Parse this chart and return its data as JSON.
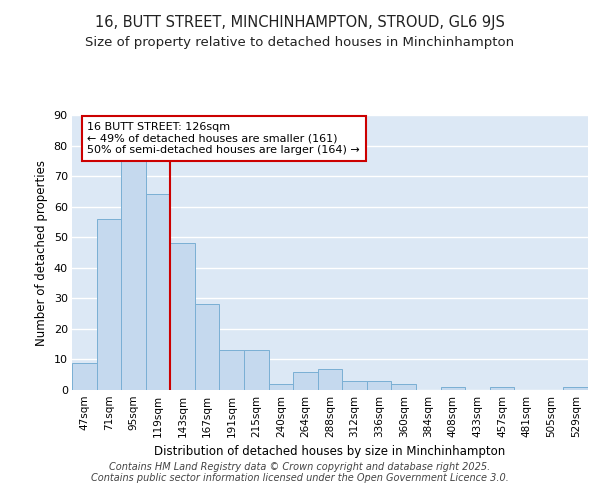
{
  "title": "16, BUTT STREET, MINCHINHAMPTON, STROUD, GL6 9JS",
  "subtitle": "Size of property relative to detached houses in Minchinhampton",
  "xlabel": "Distribution of detached houses by size in Minchinhampton",
  "ylabel": "Number of detached properties",
  "bar_labels": [
    "47sqm",
    "71sqm",
    "95sqm",
    "119sqm",
    "143sqm",
    "167sqm",
    "191sqm",
    "215sqm",
    "240sqm",
    "264sqm",
    "288sqm",
    "312sqm",
    "336sqm",
    "360sqm",
    "384sqm",
    "408sqm",
    "433sqm",
    "457sqm",
    "481sqm",
    "505sqm",
    "529sqm"
  ],
  "bar_values": [
    9,
    56,
    75,
    64,
    48,
    28,
    13,
    13,
    2,
    6,
    7,
    3,
    3,
    2,
    0,
    1,
    0,
    1,
    0,
    0,
    1
  ],
  "bar_color": "#c5d9ee",
  "bar_edge_color": "#7aafd4",
  "figure_bg_color": "#ffffff",
  "plot_bg_color": "#dce8f5",
  "grid_color": "#ffffff",
  "vline_x": 3.5,
  "vline_color": "#cc0000",
  "annotation_text": "16 BUTT STREET: 126sqm\n← 49% of detached houses are smaller (161)\n50% of semi-detached houses are larger (164) →",
  "annotation_box_color": "#ffffff",
  "annotation_box_edge": "#cc0000",
  "ylim": [
    0,
    90
  ],
  "yticks": [
    0,
    10,
    20,
    30,
    40,
    50,
    60,
    70,
    80,
    90
  ],
  "footer": "Contains HM Land Registry data © Crown copyright and database right 2025.\nContains public sector information licensed under the Open Government Licence 3.0.",
  "title_fontsize": 10.5,
  "subtitle_fontsize": 9.5,
  "footer_fontsize": 7
}
